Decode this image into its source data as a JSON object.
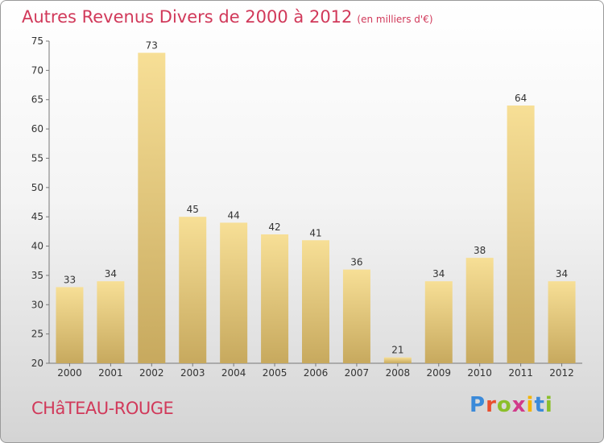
{
  "header": {
    "title": "Autres Revenus Divers de 2000 à 2012",
    "unit": "(en milliers d'€)"
  },
  "footer": {
    "commune": "CHâTEAU-ROUGE",
    "logo": "Proxiti",
    "logo_colors": [
      "#3b8ad9",
      "#e94e2f",
      "#8bbf2a",
      "#d13a8a",
      "#f4b400",
      "#3b8ad9",
      "#8bbf2a"
    ]
  },
  "chart_data": {
    "type": "bar",
    "title": "Autres Revenus Divers de 2000 à 2012",
    "xlabel": "",
    "ylabel": "",
    "categories": [
      "2000",
      "2001",
      "2002",
      "2003",
      "2004",
      "2005",
      "2006",
      "2007",
      "2008",
      "2009",
      "2010",
      "2011",
      "2012"
    ],
    "values": [
      33,
      34,
      73,
      45,
      44,
      42,
      41,
      36,
      21,
      34,
      38,
      64,
      34
    ],
    "ylim": [
      20,
      75
    ],
    "yticks": [
      20,
      25,
      30,
      35,
      40,
      45,
      50,
      55,
      60,
      65,
      70,
      75
    ],
    "grid": false,
    "legend": "none",
    "bar_color_light": "#f7df96",
    "bar_color_dark": "#c7a95e",
    "label_color": "#333333"
  }
}
